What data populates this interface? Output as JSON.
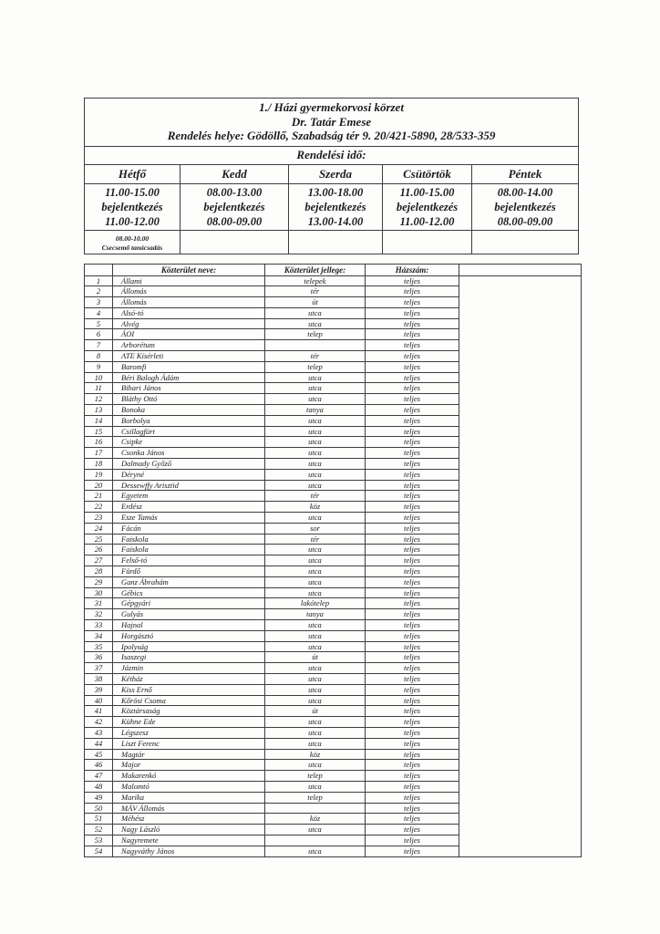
{
  "document": {
    "colors": {
      "border": "#3e3e3e",
      "text": "#1c1c1c",
      "background": "#fdfdfc"
    },
    "header": {
      "line1": "1./ Házi gyermekorvosi körzet",
      "line2": "Dr. Tatár Emese",
      "line3": "Rendelés helye: Gödöllő, Szabadság tér 9. 20/421-5890, 28/533-359",
      "schedule_title": "Rendelési idő:"
    },
    "schedule": {
      "days": [
        {
          "name": "Hétfő",
          "hours": "11.00-15.00",
          "signup_label": "bejelentkezés",
          "signup_hours": "11.00-12.00",
          "extra_hours": "08.00-10.00",
          "extra_label": "Csecsemő tanácsadás"
        },
        {
          "name": "Kedd",
          "hours": "08.00-13.00",
          "signup_label": "bejelentkezés",
          "signup_hours": "08.00-09.00",
          "extra_hours": "",
          "extra_label": ""
        },
        {
          "name": "Szerda",
          "hours": "13.00-18.00",
          "signup_label": "bejelentkezés",
          "signup_hours": "13.00-14.00",
          "extra_hours": "",
          "extra_label": ""
        },
        {
          "name": "Csütörtök",
          "hours": "11.00-15.00",
          "signup_label": "bejelentkezés",
          "signup_hours": "11.00-12.00",
          "extra_hours": "",
          "extra_label": ""
        },
        {
          "name": "Péntek",
          "hours": "08.00-14.00",
          "signup_label": "bejelentkezés",
          "signup_hours": "08.00-09.00",
          "extra_hours": "",
          "extra_label": ""
        }
      ]
    },
    "street_table": {
      "col_headers": {
        "number": "",
        "name": "Közterület neve:",
        "type": "Közterület jellege:",
        "house": "Házszám:",
        "notes": ""
      },
      "rows": [
        {
          "num": "1",
          "name": "Állami",
          "type": "telepek",
          "house": "teljes"
        },
        {
          "num": "2",
          "name": "Állomás",
          "type": "tér",
          "house": "teljes"
        },
        {
          "num": "3",
          "name": "Állomás",
          "type": "út",
          "house": "teljes"
        },
        {
          "num": "4",
          "name": "Alsó-tó",
          "type": "utca",
          "house": "teljes"
        },
        {
          "num": "5",
          "name": "Alvég",
          "type": "utca",
          "house": "teljes"
        },
        {
          "num": "6",
          "name": "ÁOI",
          "type": "telep",
          "house": "teljes"
        },
        {
          "num": "7",
          "name": "Arborétum",
          "type": "",
          "house": "teljes"
        },
        {
          "num": "8",
          "name": "ATE Kísérleti",
          "type": "tér",
          "house": "teljes"
        },
        {
          "num": "9",
          "name": "Baromfi",
          "type": "telep",
          "house": "teljes"
        },
        {
          "num": "10",
          "name": "Béri Balogh Ádám",
          "type": "utca",
          "house": "teljes"
        },
        {
          "num": "11",
          "name": "Bihari János",
          "type": "utca",
          "house": "teljes"
        },
        {
          "num": "12",
          "name": "Bláthy Ottó",
          "type": "utca",
          "house": "teljes"
        },
        {
          "num": "13",
          "name": "Bonoka",
          "type": "tanya",
          "house": "teljes"
        },
        {
          "num": "14",
          "name": "Borbolya",
          "type": "utca",
          "house": "teljes"
        },
        {
          "num": "15",
          "name": "Csillagfürt",
          "type": "utca",
          "house": "teljes"
        },
        {
          "num": "16",
          "name": "Csipke",
          "type": "utca",
          "house": "teljes"
        },
        {
          "num": "17",
          "name": "Csonka János",
          "type": "utca",
          "house": "teljes"
        },
        {
          "num": "18",
          "name": "Dalmady Győző",
          "type": "utca",
          "house": "teljes"
        },
        {
          "num": "19",
          "name": "Déryné",
          "type": "utca",
          "house": "teljes"
        },
        {
          "num": "20",
          "name": "Dessewffy Arisztid",
          "type": "utca",
          "house": "teljes"
        },
        {
          "num": "21",
          "name": "Egyetem",
          "type": "tér",
          "house": "teljes"
        },
        {
          "num": "22",
          "name": "Erdész",
          "type": "köz",
          "house": "teljes"
        },
        {
          "num": "23",
          "name": "Esze Tamás",
          "type": "utca",
          "house": "teljes"
        },
        {
          "num": "24",
          "name": "Fácán",
          "type": "sor",
          "house": "teljes"
        },
        {
          "num": "25",
          "name": "Faiskola",
          "type": "tér",
          "house": "teljes"
        },
        {
          "num": "26",
          "name": "Faiskola",
          "type": "utca",
          "house": "teljes"
        },
        {
          "num": "27",
          "name": "Felső-tó",
          "type": "utca",
          "house": "teljes"
        },
        {
          "num": "28",
          "name": "Fürdő",
          "type": "utca",
          "house": "teljes"
        },
        {
          "num": "29",
          "name": "Ganz Ábrahám",
          "type": "utca",
          "house": "teljes"
        },
        {
          "num": "30",
          "name": "Gébics",
          "type": "utca",
          "house": "teljes"
        },
        {
          "num": "31",
          "name": "Gépgyári",
          "type": "lakótelep",
          "house": "teljes"
        },
        {
          "num": "32",
          "name": "Gulyás",
          "type": "tanya",
          "house": "teljes"
        },
        {
          "num": "33",
          "name": "Hajnal",
          "type": "utca",
          "house": "teljes"
        },
        {
          "num": "34",
          "name": "Horgásztó",
          "type": "utca",
          "house": "teljes"
        },
        {
          "num": "35",
          "name": "Ipolyság",
          "type": "utca",
          "house": "teljes"
        },
        {
          "num": "36",
          "name": "Isaszegi",
          "type": "út",
          "house": "teljes"
        },
        {
          "num": "37",
          "name": "Jázmin",
          "type": "utca",
          "house": "teljes"
        },
        {
          "num": "38",
          "name": "Kétház",
          "type": "utca",
          "house": "teljes"
        },
        {
          "num": "39",
          "name": "Kiss Ernő",
          "type": "utca",
          "house": "teljes"
        },
        {
          "num": "40",
          "name": "Kőrösi Csoma",
          "type": "utca",
          "house": "teljes"
        },
        {
          "num": "41",
          "name": "Köztársaság",
          "type": "út",
          "house": "teljes"
        },
        {
          "num": "42",
          "name": "Kühne Ede",
          "type": "utca",
          "house": "teljes"
        },
        {
          "num": "43",
          "name": "Légszesz",
          "type": "utca",
          "house": "teljes"
        },
        {
          "num": "44",
          "name": "Liszt Ferenc",
          "type": "utca",
          "house": "teljes"
        },
        {
          "num": "45",
          "name": "Magtár",
          "type": "köz",
          "house": "teljes"
        },
        {
          "num": "46",
          "name": "Major",
          "type": "utca",
          "house": "teljes"
        },
        {
          "num": "47",
          "name": "Makarenkó",
          "type": "telep",
          "house": "teljes"
        },
        {
          "num": "48",
          "name": "Malomtó",
          "type": "utca",
          "house": "teljes"
        },
        {
          "num": "49",
          "name": "Marika",
          "type": "telep",
          "house": "teljes"
        },
        {
          "num": "50",
          "name": "MÁV Állomás",
          "type": "",
          "house": "teljes"
        },
        {
          "num": "51",
          "name": "Méhész",
          "type": "köz",
          "house": "teljes"
        },
        {
          "num": "52",
          "name": "Nagy László",
          "type": "utca",
          "house": "teljes"
        },
        {
          "num": "53",
          "name": "Nagyremete",
          "type": "",
          "house": "teljes"
        },
        {
          "num": "54",
          "name": "Nagyváthy János",
          "type": "utca",
          "house": "teljes"
        }
      ]
    }
  }
}
